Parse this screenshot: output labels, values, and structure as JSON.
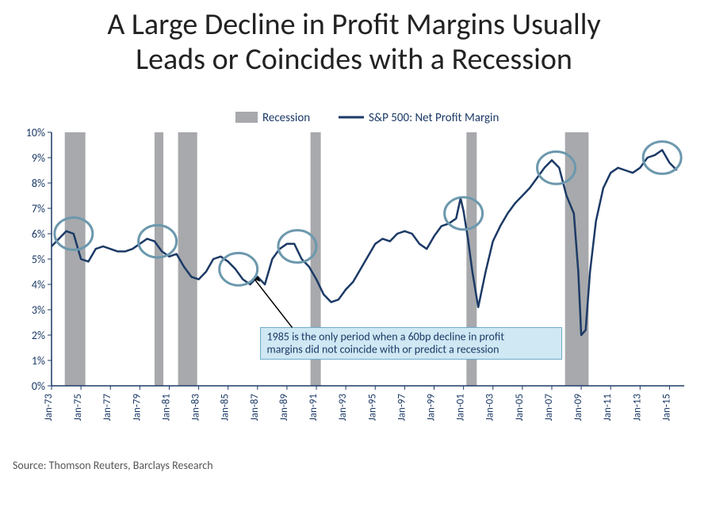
{
  "title_line1": "A Large Decline in Profit Margins Usually",
  "title_line2": "Leads or Coincides with a Recession",
  "source": "Source: Thomson Reuters, Barclays Research",
  "chart": {
    "type": "line",
    "background_color": "#ffffff",
    "line_color": "#1c3a66",
    "line_width": 2.5,
    "recession_fill": "#a7a9ac",
    "circle_stroke": "#6c98ad",
    "circle_stroke_width": 3,
    "callout_fill": "#cfe8f4",
    "callout_stroke": "#6aa8c8",
    "arrow_color": "#000000",
    "axis_color": "#1c3a66",
    "tick_color": "#1c3a66",
    "y": {
      "min": 0,
      "max": 10,
      "step": 1,
      "suffix": "%"
    },
    "x": {
      "start_year": 1973,
      "end_year": 2015,
      "tick_step_years": 2,
      "label_prefix": "Jan-",
      "label_rotation": -90
    },
    "legend": {
      "items": [
        {
          "swatch": "rect",
          "label": "Recession",
          "color": "#a7a9ac"
        },
        {
          "swatch": "line",
          "label": "S&P 500: Net Profit Margin",
          "color": "#1c3a66"
        }
      ]
    },
    "recessions": [
      {
        "start": 1973.9,
        "end": 1975.3
      },
      {
        "start": 1980.0,
        "end": 1980.6
      },
      {
        "start": 1981.6,
        "end": 1982.9
      },
      {
        "start": 1990.6,
        "end": 1991.3
      },
      {
        "start": 2001.2,
        "end": 2001.9
      },
      {
        "start": 2007.9,
        "end": 2009.5
      }
    ],
    "circles": [
      {
        "year": 1974.5,
        "value": 6.0
      },
      {
        "year": 1980.2,
        "value": 5.7
      },
      {
        "year": 1985.7,
        "value": 4.6
      },
      {
        "year": 1989.7,
        "value": 5.5
      },
      {
        "year": 2001.0,
        "value": 6.8
      },
      {
        "year": 2007.3,
        "value": 8.6
      },
      {
        "year": 2014.5,
        "value": 9.0
      }
    ],
    "circle_radius": 24,
    "callout": {
      "text_line1": "1985 is the only period when  a 60bp decline in profit",
      "text_line2": "margins did not coincide with or predict a recession",
      "arrow_to_year": 1986.8,
      "arrow_to_value": 4.2
    },
    "series": [
      {
        "year": 1973.0,
        "v": 5.5
      },
      {
        "year": 1973.5,
        "v": 5.8
      },
      {
        "year": 1974.0,
        "v": 6.1
      },
      {
        "year": 1974.5,
        "v": 6.0
      },
      {
        "year": 1975.0,
        "v": 5.0
      },
      {
        "year": 1975.5,
        "v": 4.9
      },
      {
        "year": 1976.0,
        "v": 5.4
      },
      {
        "year": 1976.5,
        "v": 5.5
      },
      {
        "year": 1977.0,
        "v": 5.4
      },
      {
        "year": 1977.5,
        "v": 5.3
      },
      {
        "year": 1978.0,
        "v": 5.3
      },
      {
        "year": 1978.5,
        "v": 5.4
      },
      {
        "year": 1979.0,
        "v": 5.6
      },
      {
        "year": 1979.5,
        "v": 5.8
      },
      {
        "year": 1980.0,
        "v": 5.7
      },
      {
        "year": 1980.5,
        "v": 5.3
      },
      {
        "year": 1981.0,
        "v": 5.1
      },
      {
        "year": 1981.5,
        "v": 5.2
      },
      {
        "year": 1982.0,
        "v": 4.7
      },
      {
        "year": 1982.5,
        "v": 4.3
      },
      {
        "year": 1983.0,
        "v": 4.2
      },
      {
        "year": 1983.5,
        "v": 4.5
      },
      {
        "year": 1984.0,
        "v": 5.0
      },
      {
        "year": 1984.5,
        "v": 5.1
      },
      {
        "year": 1985.0,
        "v": 4.9
      },
      {
        "year": 1985.5,
        "v": 4.6
      },
      {
        "year": 1986.0,
        "v": 4.2
      },
      {
        "year": 1986.5,
        "v": 4.0
      },
      {
        "year": 1987.0,
        "v": 4.3
      },
      {
        "year": 1987.5,
        "v": 4.0
      },
      {
        "year": 1988.0,
        "v": 5.0
      },
      {
        "year": 1988.5,
        "v": 5.4
      },
      {
        "year": 1989.0,
        "v": 5.6
      },
      {
        "year": 1989.5,
        "v": 5.6
      },
      {
        "year": 1990.0,
        "v": 5.0
      },
      {
        "year": 1990.5,
        "v": 4.7
      },
      {
        "year": 1991.0,
        "v": 4.2
      },
      {
        "year": 1991.5,
        "v": 3.6
      },
      {
        "year": 1992.0,
        "v": 3.3
      },
      {
        "year": 1992.5,
        "v": 3.4
      },
      {
        "year": 1993.0,
        "v": 3.8
      },
      {
        "year": 1993.5,
        "v": 4.1
      },
      {
        "year": 1994.0,
        "v": 4.6
      },
      {
        "year": 1994.5,
        "v": 5.1
      },
      {
        "year": 1995.0,
        "v": 5.6
      },
      {
        "year": 1995.5,
        "v": 5.8
      },
      {
        "year": 1996.0,
        "v": 5.7
      },
      {
        "year": 1996.5,
        "v": 6.0
      },
      {
        "year": 1997.0,
        "v": 6.1
      },
      {
        "year": 1997.5,
        "v": 6.0
      },
      {
        "year": 1998.0,
        "v": 5.6
      },
      {
        "year": 1998.5,
        "v": 5.4
      },
      {
        "year": 1999.0,
        "v": 5.9
      },
      {
        "year": 1999.5,
        "v": 6.3
      },
      {
        "year": 2000.0,
        "v": 6.4
      },
      {
        "year": 2000.5,
        "v": 6.6
      },
      {
        "year": 2000.8,
        "v": 7.4
      },
      {
        "year": 2001.0,
        "v": 6.9
      },
      {
        "year": 2001.3,
        "v": 5.8
      },
      {
        "year": 2001.6,
        "v": 4.5
      },
      {
        "year": 2002.0,
        "v": 3.1
      },
      {
        "year": 2002.5,
        "v": 4.5
      },
      {
        "year": 2003.0,
        "v": 5.7
      },
      {
        "year": 2003.5,
        "v": 6.3
      },
      {
        "year": 2004.0,
        "v": 6.8
      },
      {
        "year": 2004.5,
        "v": 7.2
      },
      {
        "year": 2005.0,
        "v": 7.5
      },
      {
        "year": 2005.5,
        "v": 7.8
      },
      {
        "year": 2006.0,
        "v": 8.2
      },
      {
        "year": 2006.5,
        "v": 8.6
      },
      {
        "year": 2007.0,
        "v": 8.9
      },
      {
        "year": 2007.5,
        "v": 8.6
      },
      {
        "year": 2008.0,
        "v": 7.5
      },
      {
        "year": 2008.5,
        "v": 6.8
      },
      {
        "year": 2008.8,
        "v": 4.5
      },
      {
        "year": 2009.0,
        "v": 2.0
      },
      {
        "year": 2009.3,
        "v": 2.2
      },
      {
        "year": 2009.6,
        "v": 4.5
      },
      {
        "year": 2010.0,
        "v": 6.5
      },
      {
        "year": 2010.5,
        "v": 7.8
      },
      {
        "year": 2011.0,
        "v": 8.4
      },
      {
        "year": 2011.5,
        "v": 8.6
      },
      {
        "year": 2012.0,
        "v": 8.5
      },
      {
        "year": 2012.5,
        "v": 8.4
      },
      {
        "year": 2013.0,
        "v": 8.6
      },
      {
        "year": 2013.5,
        "v": 9.0
      },
      {
        "year": 2014.0,
        "v": 9.1
      },
      {
        "year": 2014.5,
        "v": 9.3
      },
      {
        "year": 2015.0,
        "v": 8.8
      },
      {
        "year": 2015.5,
        "v": 8.5
      }
    ]
  }
}
